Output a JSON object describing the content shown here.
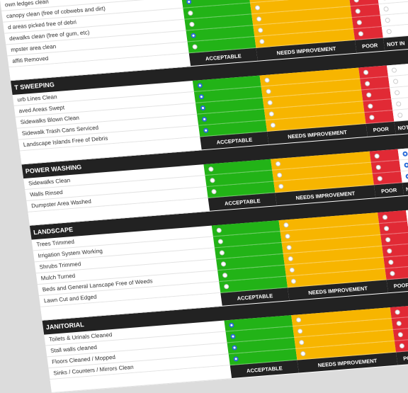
{
  "columns": {
    "acceptable": "ACCEPTABLE",
    "needs_improvement": "NEEDS IMPROVEMENT",
    "poor": "POOR",
    "not": "NOT IN"
  },
  "sections": [
    {
      "title": "",
      "items": [
        {
          "label": "own ledges clean",
          "checked": ""
        },
        {
          "label": "canopy clean (free of cobwebs and dirt)",
          "checked": "acceptable"
        },
        {
          "label": "d areas picked free of debri",
          "checked": ""
        },
        {
          "label": "dewalks clean (free of gum, etc)",
          "checked": ""
        },
        {
          "label": "mpster area clean",
          "checked": "acceptable"
        },
        {
          "label": "affiti Removed",
          "checked": ""
        }
      ]
    },
    {
      "title": "T SWEEPING",
      "items": [
        {
          "label": "urb Lines Clean",
          "checked": "acceptable"
        },
        {
          "label": "aved Areas Swept",
          "checked": "acceptable"
        },
        {
          "label": "Sidewalks Blown Clean",
          "checked": "acceptable"
        },
        {
          "label": "Sidewalk Trash Cans Serviced",
          "checked": "acceptable"
        },
        {
          "label": "Landscape Islands Free of Debris",
          "checked": "acceptable"
        }
      ]
    },
    {
      "title": "POWER WASHING",
      "items": [
        {
          "label": "Sidewalks Clean",
          "checked": "not"
        },
        {
          "label": "Walls Rinsed",
          "checked": "not"
        },
        {
          "label": "Dumpster Area Washed",
          "checked": "not"
        }
      ]
    },
    {
      "title": "LANDSCAPE",
      "items": [
        {
          "label": "Trees Trimmed",
          "checked": "not"
        },
        {
          "label": "Irrigation System Working",
          "checked": "not"
        },
        {
          "label": "Shrubs Trimmed",
          "checked": "not"
        },
        {
          "label": "Mulch Turned",
          "checked": "not"
        },
        {
          "label": "Beds and General Lanscape Free of Weeds",
          "checked": "not"
        },
        {
          "label": "Lawn Cut and Edged",
          "checked": "not"
        }
      ]
    },
    {
      "title": "JANITORIAL",
      "items": [
        {
          "label": "Toilets & Urinals Cleaned",
          "checked": "acceptable"
        },
        {
          "label": "Stall walls cleaned",
          "checked": "acceptable"
        },
        {
          "label": "Floors Cleaned / Mopped",
          "checked": "acceptable"
        },
        {
          "label": "Sinks / Counters / Mirrors Clean",
          "checked": "acceptable"
        }
      ]
    }
  ]
}
